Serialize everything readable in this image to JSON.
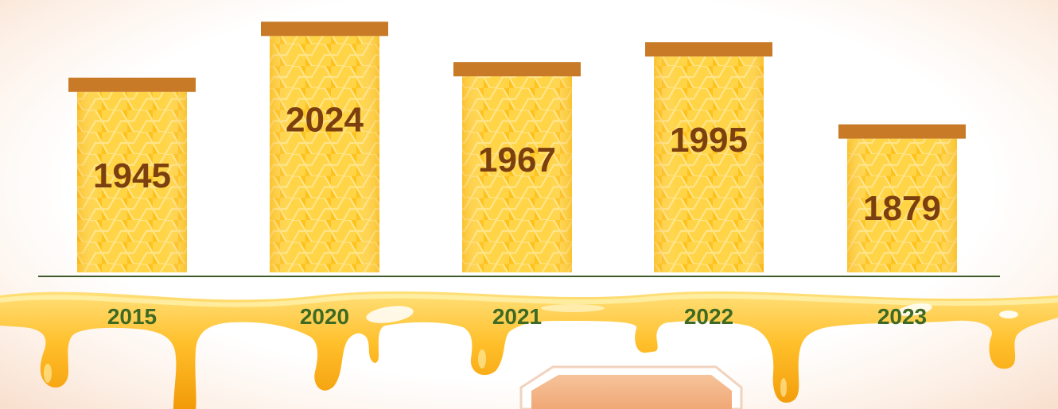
{
  "chart_data": {
    "type": "bar",
    "categories": [
      "2015",
      "2020",
      "2021",
      "2022",
      "2023"
    ],
    "values": [
      1945,
      2024,
      1967,
      1995,
      1879
    ],
    "title": "",
    "xlabel": "",
    "ylabel": "",
    "ylim": [
      1800,
      2030
    ],
    "grid": false,
    "legend": "none"
  },
  "colors": {
    "honey_light": "#ffd24a",
    "honey_dark": "#f5a70c",
    "comb_line": "#ffe98a",
    "lid": "#c87a26",
    "value_text": "#7b3f10",
    "year_text": "#3f6a24",
    "baseline": "#3f5a2a",
    "drip_light": "#ffd76a",
    "drip_dark": "#e89a10",
    "wax_box": "#f4b887"
  },
  "decor": {
    "bar_fill_icon": "honeycomb-pattern",
    "lid_icon": "jar-lid",
    "ground_icon": "dripping-honey"
  }
}
